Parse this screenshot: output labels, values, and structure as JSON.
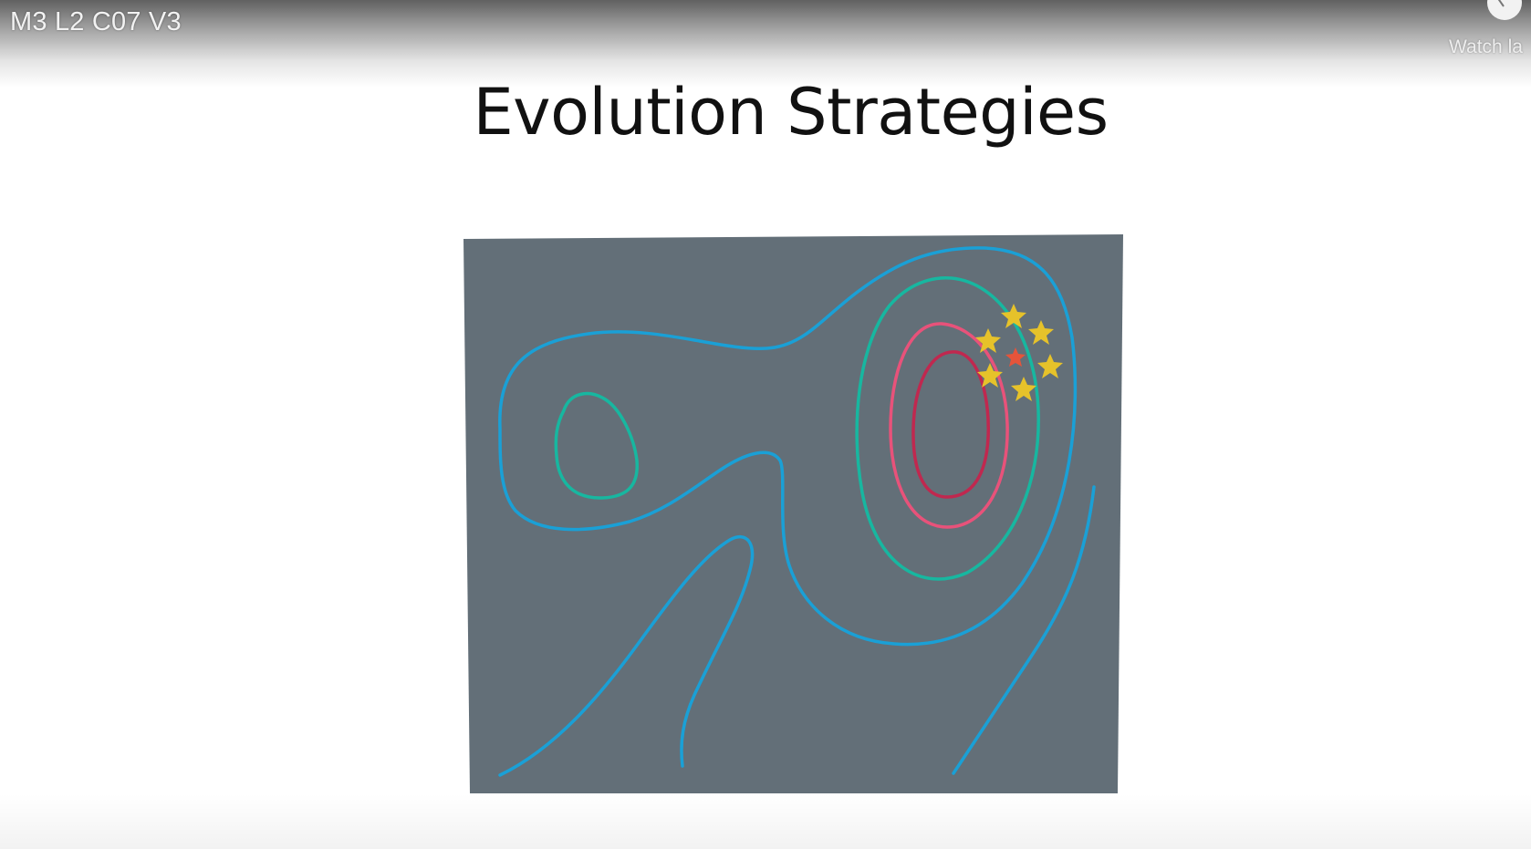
{
  "player": {
    "video_title": "M3 L2 C07 V3",
    "watch_later_label": "Watch la",
    "watch_later_icon": "clock-icon"
  },
  "slide": {
    "title": "Evolution Strategies",
    "diagram": {
      "background_color": "#636f78",
      "contour_colors": {
        "outer": "#1aa0d6",
        "middle": "#17b7a0",
        "inner": "#e8527a",
        "core": "#c0284f"
      },
      "star_colors": {
        "sample": "#e6c22a",
        "center": "#e5543a"
      },
      "sample_star_count": 6,
      "center_star_count": 1
    }
  }
}
